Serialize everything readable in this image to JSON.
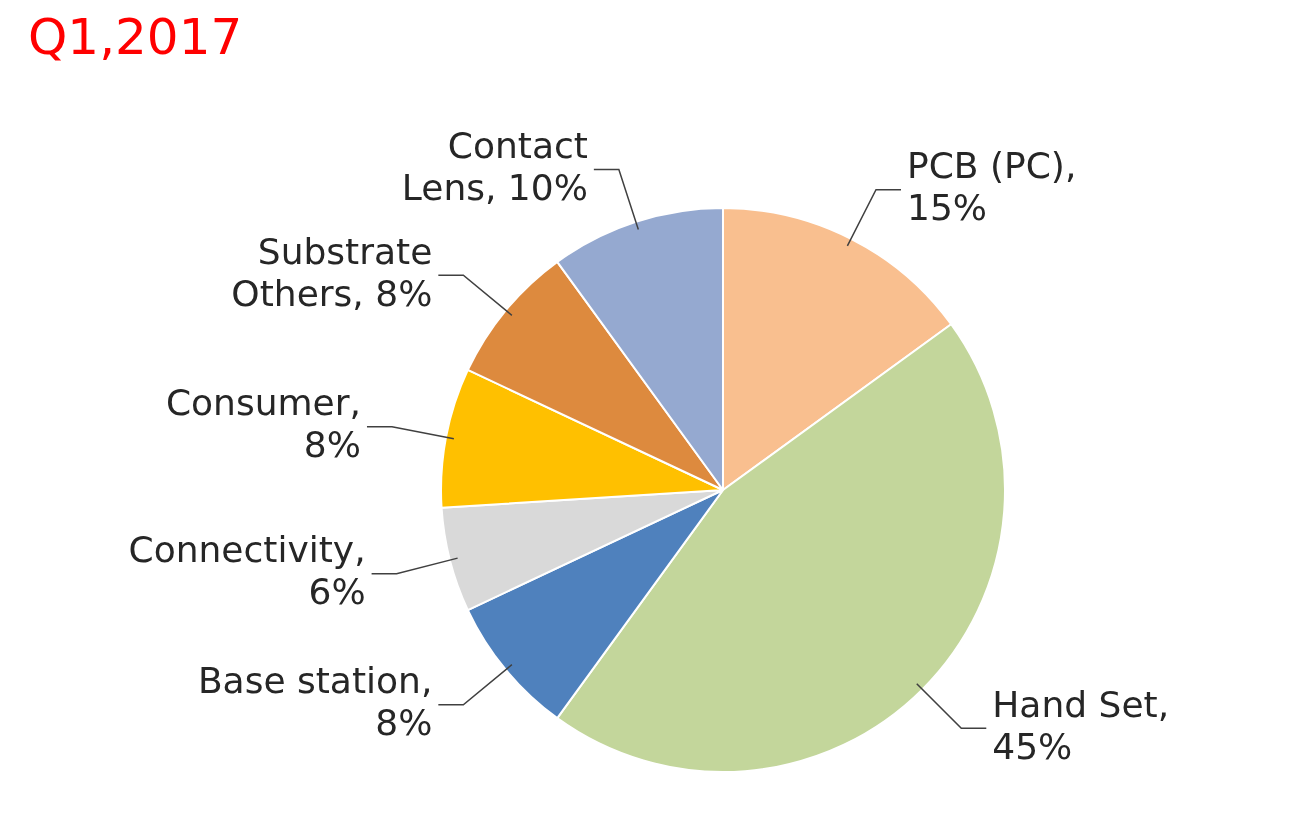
{
  "chart_data": {
    "type": "pie",
    "title": "Q1,2017",
    "categories": [
      "PCB (PC)",
      "Hand Set",
      "Base station",
      "Connectivity",
      "Consumer",
      "Substrate Others",
      "Contact Lens"
    ],
    "values": [
      15,
      45,
      8,
      6,
      8,
      8,
      10
    ],
    "value_labels": [
      ", 15%",
      ", 45%",
      ", 8%",
      ", 6%",
      ", 8%",
      ", 8%",
      ", 10%"
    ],
    "colors": [
      "#f9bf8f",
      "#c3d69b",
      "#4f81bd",
      "#d9d9d9",
      "#ffc000",
      "#dd8a3e",
      "#95a9d0"
    ],
    "legend": false
  }
}
